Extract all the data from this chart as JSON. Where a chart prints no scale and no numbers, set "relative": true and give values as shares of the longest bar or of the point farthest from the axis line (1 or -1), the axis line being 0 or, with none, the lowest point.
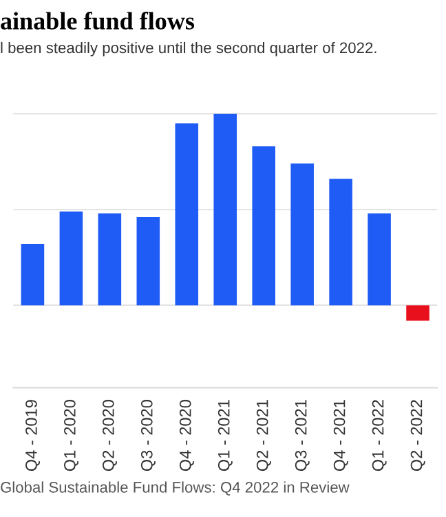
{
  "chart_data": {
    "type": "bar",
    "title": "ainable fund flows",
    "subtitle": "l been steadily positive until the second quarter of 2022.",
    "categories": [
      "Q4 - 2019",
      "Q1 - 2020",
      "Q2 - 2020",
      "Q3 - 2020",
      "Q4 - 2020",
      "Q1 - 2021",
      "Q2 - 2021",
      "Q3 - 2021",
      "Q4 - 2021",
      "Q1 - 2022",
      "Q2 - 2022"
    ],
    "values": [
      0.32,
      0.49,
      0.48,
      0.46,
      0.95,
      1,
      0.83,
      0.74,
      0.66,
      0.48,
      -0.08
    ],
    "colors": [
      "#1f5cf5",
      "#1f5cf5",
      "#1f5cf5",
      "#1f5cf5",
      "#1f5cf5",
      "#1f5cf5",
      "#1f5cf5",
      "#1f5cf5",
      "#1f5cf5",
      "#1f5cf5",
      "#e8101c"
    ],
    "relative": true,
    "grid": "y",
    "tick_labels": "x",
    "annotations": [
      "Global Sustainable Fund Flows: Q4 2022 in Review"
    ]
  }
}
